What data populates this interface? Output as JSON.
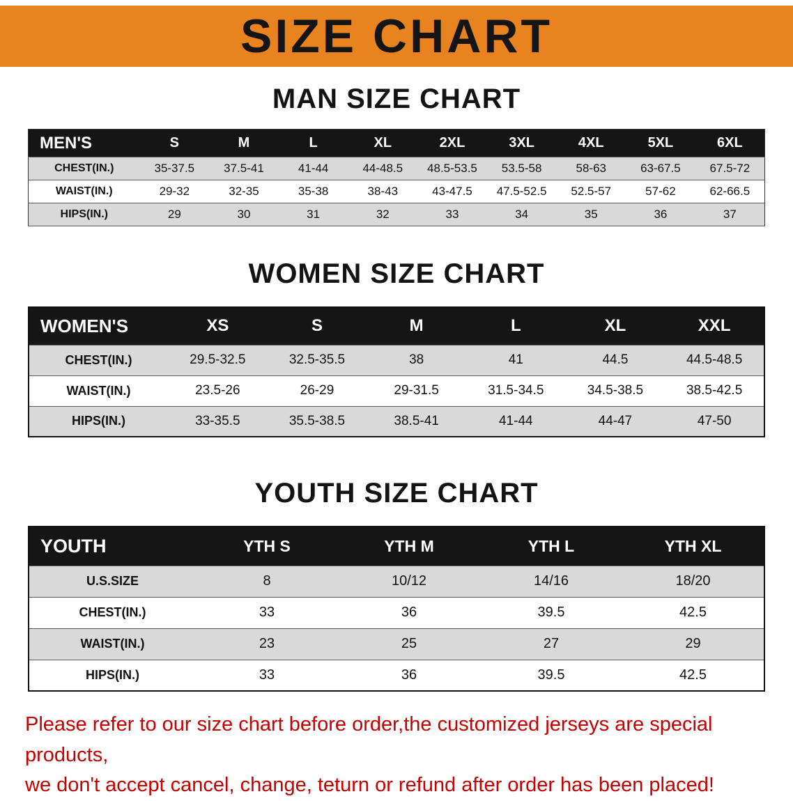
{
  "colors": {
    "banner": "#E98320",
    "table_header": "#151515",
    "row_shade": "#D9D9D9",
    "row_plain": "#FFFFFF",
    "disclaimer": "#C40000",
    "text": "#111111"
  },
  "banner": {
    "title": "SIZE CHART"
  },
  "sections": [
    {
      "heading": "MAN SIZE CHART",
      "table": {
        "header": [
          "MEN'S",
          "S",
          "M",
          "L",
          "XL",
          "2XL",
          "3XL",
          "4XL",
          "5XL",
          "6XL"
        ],
        "rows": [
          [
            "CHEST(IN.)",
            "35-37.5",
            "37.5-41",
            "41-44",
            "44-48.5",
            "48.5-53.5",
            "53.5-58",
            "58-63",
            "63-67.5",
            "67.5-72"
          ],
          [
            "WAIST(IN.)",
            "29-32",
            "32-35",
            "35-38",
            "38-43",
            "43-47.5",
            "47.5-52.5",
            "52.5-57",
            "57-62",
            "62-66.5"
          ],
          [
            "HIPS(IN.)",
            "29",
            "30",
            "31",
            "32",
            "33",
            "34",
            "35",
            "36",
            "37"
          ]
        ]
      }
    },
    {
      "heading": "WOMEN SIZE CHART",
      "table": {
        "header": [
          "WOMEN'S",
          "XS",
          "S",
          "M",
          "L",
          "XL",
          "XXL"
        ],
        "rows": [
          [
            "CHEST(IN.)",
            "29.5-32.5",
            "32.5-35.5",
            "38",
            "41",
            "44.5",
            "44.5-48.5"
          ],
          [
            "WAIST(IN.)",
            "23.5-26",
            "26-29",
            "29-31.5",
            "31.5-34.5",
            "34.5-38.5",
            "38.5-42.5"
          ],
          [
            "HIPS(IN.)",
            "33-35.5",
            "35.5-38.5",
            "38.5-41",
            "41-44",
            "44-47",
            "47-50"
          ]
        ]
      }
    },
    {
      "heading": "YOUTH SIZE CHART",
      "table": {
        "header": [
          "YOUTH",
          "YTH S",
          "YTH M",
          "YTH L",
          "YTH XL"
        ],
        "rows": [
          [
            "U.S.SIZE",
            "8",
            "10/12",
            "14/16",
            "18/20"
          ],
          [
            "CHEST(IN.)",
            "33",
            "36",
            "39.5",
            "42.5"
          ],
          [
            "WAIST(IN.)",
            "23",
            "25",
            "27",
            "29"
          ],
          [
            "HIPS(IN.)",
            "33",
            "36",
            "39.5",
            "42.5"
          ]
        ]
      }
    }
  ],
  "disclaimer": {
    "line1": "Please refer to our size chart before order,the customized jerseys are special products,",
    "line2": "we don't accept cancel, change, teturn or refund after order has been placed!"
  }
}
